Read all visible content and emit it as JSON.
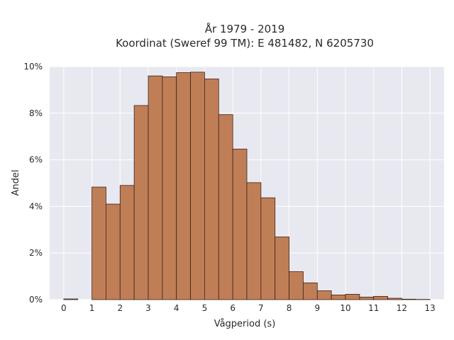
{
  "chart_data": {
    "type": "bar",
    "title_lines": [
      "År 1979 - 2019",
      "Koordinat (Sweref 99 TM): E 481482, N 6205730"
    ],
    "xlabel": "Vågperiod (s)",
    "ylabel": "Andel",
    "xlim": [
      -0.5,
      13.5
    ],
    "ylim": [
      0,
      0.1
    ],
    "x_ticks": [
      "0",
      "1",
      "2",
      "3",
      "4",
      "5",
      "6",
      "7",
      "8",
      "9",
      "10",
      "11",
      "12",
      "13"
    ],
    "y_ticks": [
      "0%",
      "2%",
      "4%",
      "6%",
      "8%",
      "10%"
    ],
    "bin_width": 0.5,
    "bin_starts": [
      0,
      1,
      1.5,
      2,
      2.5,
      3,
      3.5,
      4,
      4.5,
      5,
      5.5,
      6,
      6.5,
      7,
      7.5,
      8,
      8.5,
      9,
      9.5,
      10,
      10.5,
      11,
      11.5,
      12,
      12.5
    ],
    "values": [
      0.0003,
      0.0483,
      0.041,
      0.049,
      0.0833,
      0.096,
      0.0956,
      0.0974,
      0.0976,
      0.0947,
      0.0794,
      0.0646,
      0.0502,
      0.0437,
      0.0269,
      0.012,
      0.0072,
      0.0038,
      0.002,
      0.0023,
      0.0011,
      0.0014,
      0.0006,
      0.0002,
      0.0001
    ],
    "bar_color": "#c07e57",
    "bar_edge_color": "#3a2418",
    "background_color": "#e8e8f0",
    "grid": true,
    "legend": false
  }
}
